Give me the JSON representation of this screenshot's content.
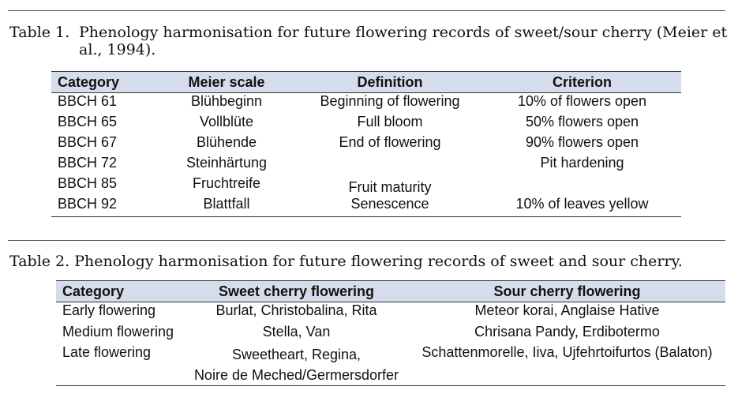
{
  "table1": {
    "label": "Table 1.",
    "caption": "Phenology harmonisation for future flowering records of sweet/sour cherry (Meier et al., 1994).",
    "headers": [
      "Category",
      "Meier scale",
      "Definition",
      "Criterion"
    ],
    "rows": [
      [
        "BBCH 61",
        "Blühbeginn",
        "Beginning of flowering",
        "10% of flowers open"
      ],
      [
        "BBCH 65",
        "Vollblüte",
        "Full bloom",
        "50% flowers open"
      ],
      [
        "BBCH 67",
        "Blühende",
        "End of flowering",
        "90% flowers open"
      ],
      [
        "BBCH 72",
        "Steinhärtung",
        "",
        "Pit hardening"
      ],
      [
        "BBCH 85",
        "Fruchtreife",
        "Fruit maturity",
        ""
      ],
      [
        "BBCH 92",
        "Blattfall",
        "Senescence",
        "10% of leaves yellow"
      ]
    ]
  },
  "table2": {
    "caption": "Table 2. Phenology harmonisation for future flowering records of sweet and sour cherry.",
    "headers": [
      "Category",
      "Sweet cherry flowering",
      "Sour cherry flowering"
    ],
    "rows": [
      [
        "Early flowering",
        "Burlat, Christobalina, Rita",
        "Meteor korai, Anglaise Hative"
      ],
      [
        "Medium flowering",
        "Stella, Van",
        "Chrisana Pandy, Erdibotermo"
      ],
      [
        "Late flowering",
        "Sweetheart, Regina,",
        "Schattenmorelle, Iiva, Ujfehrtoifurtos (Balaton)"
      ]
    ],
    "last_row_extra": "Noire de Meched/Germersdorfer"
  }
}
